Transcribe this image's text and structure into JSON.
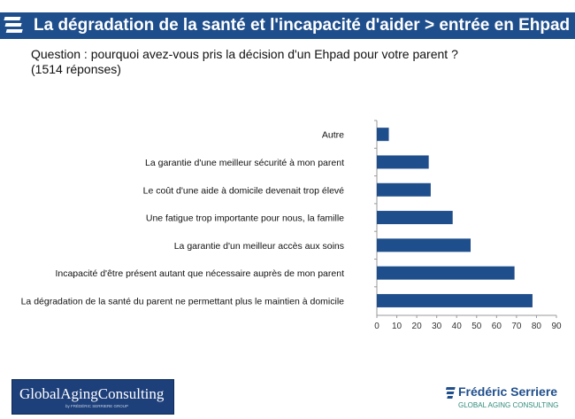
{
  "header": {
    "title": "La dégradation de la santé et l'incapacité d'aider > entrée en Ehpad",
    "logo_icon": "stacked-bars-logo-icon",
    "bar_color": "#1f4e8c"
  },
  "question": {
    "line1": "Question : pourquoi avez-vous pris la décision d'un Ehpad pour votre parent  ?",
    "line2": "(1514 réponses)"
  },
  "chart_data": {
    "type": "bar",
    "orientation": "horizontal",
    "categories": [
      "Autre",
      "La garantie d'une meilleur sécurité à mon parent",
      "Le coût d'une aide à domicile devenait trop élevé",
      "Une fatigue trop importante pour nous, la famille",
      "La garantie d'un meilleur accès aux soins",
      "Incapacité d'être présent autant que nécessaire auprès de mon parent",
      "La dégradation de la santé du parent ne permettant plus le maintien à domicile"
    ],
    "values": [
      6,
      26,
      27,
      38,
      47,
      69,
      78
    ],
    "xlim": [
      0,
      90
    ],
    "xticks": [
      0,
      10,
      20,
      30,
      40,
      50,
      60,
      70,
      80,
      90
    ],
    "bar_color": "#1f4e8c",
    "grid": false
  },
  "footer": {
    "left_brand": "GlobalAgingConsulting",
    "left_sub": "by FRÉDÉRIC SERRIERE GROUP",
    "right_name": "Frédéric Serriere",
    "right_tag": "GLOBAL AGING CONSULTING"
  }
}
